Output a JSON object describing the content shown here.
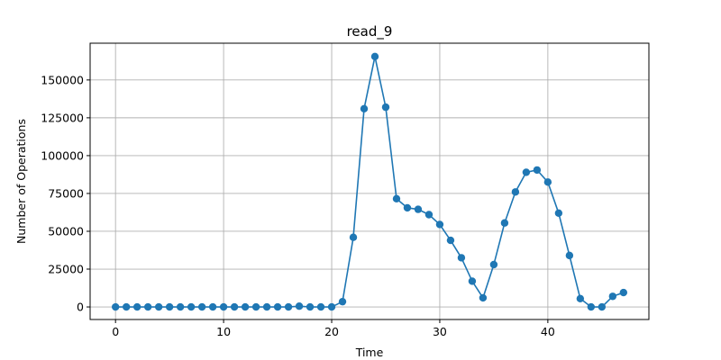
{
  "chart_data": {
    "type": "line",
    "title": "read_9",
    "xlabel": "Time",
    "ylabel": "Number of Operations",
    "xlim": [
      -2.35,
      49.35
    ],
    "ylim": [
      -8300,
      174300
    ],
    "xticks": [
      0,
      10,
      20,
      30,
      40
    ],
    "yticks": [
      0,
      25000,
      50000,
      75000,
      100000,
      125000,
      150000
    ],
    "grid": true,
    "marker": "circle",
    "color": "#1f77b4",
    "series": [
      {
        "x": [
          0,
          1,
          2,
          3,
          4,
          5,
          6,
          7,
          8,
          9,
          10,
          11,
          12,
          13,
          14,
          15,
          16,
          17,
          18,
          19,
          20,
          21,
          22,
          23,
          24,
          25,
          26,
          27,
          28,
          29,
          30,
          31,
          32,
          33,
          34,
          35,
          36,
          37,
          38,
          39,
          40,
          41,
          42,
          43,
          44,
          45,
          46,
          47
        ],
        "values": [
          0,
          0,
          0,
          0,
          0,
          0,
          0,
          0,
          0,
          0,
          0,
          0,
          0,
          0,
          0,
          0,
          0,
          500,
          0,
          0,
          0,
          3500,
          46000,
          131000,
          165500,
          132000,
          71500,
          65500,
          64500,
          61000,
          54500,
          44000,
          32500,
          17000,
          6000,
          28000,
          55500,
          76000,
          89000,
          90500,
          82500,
          62000,
          34000,
          5500,
          0,
          0,
          7000,
          9500
        ]
      }
    ]
  }
}
